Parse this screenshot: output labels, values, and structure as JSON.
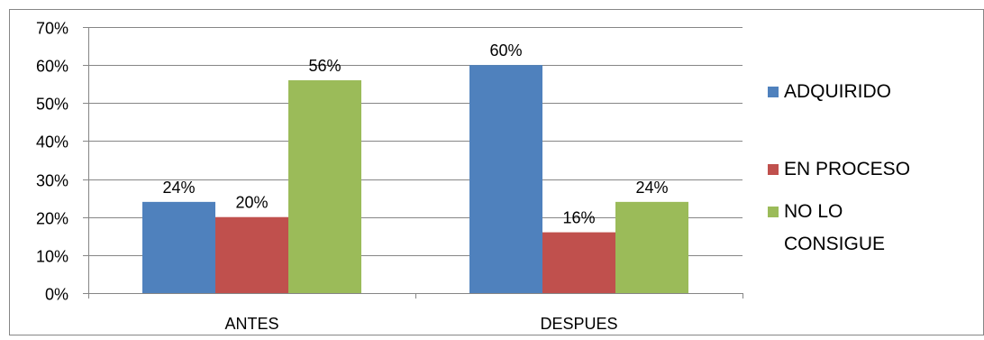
{
  "chart_data": {
    "type": "bar",
    "categories": [
      "ANTES",
      "DESPUES"
    ],
    "series": [
      {
        "name": "ADQUIRIDO",
        "values": [
          24,
          60
        ],
        "color": "#4F81BD"
      },
      {
        "name": "EN PROCESO",
        "values": [
          20,
          16
        ],
        "color": "#C0504D"
      },
      {
        "name": "NO LO CONSIGUE",
        "values": [
          56,
          24
        ],
        "color": "#9BBB59"
      }
    ],
    "data_labels": [
      [
        "24%",
        "20%",
        "56%"
      ],
      [
        "60%",
        "16%",
        "24%"
      ]
    ],
    "y_ticks": [
      "0%",
      "10%",
      "20%",
      "30%",
      "40%",
      "50%",
      "60%",
      "70%"
    ],
    "ylim": [
      0,
      70
    ],
    "title": "",
    "xlabel": "",
    "ylabel": "",
    "grid": true,
    "legend_position": "right"
  }
}
